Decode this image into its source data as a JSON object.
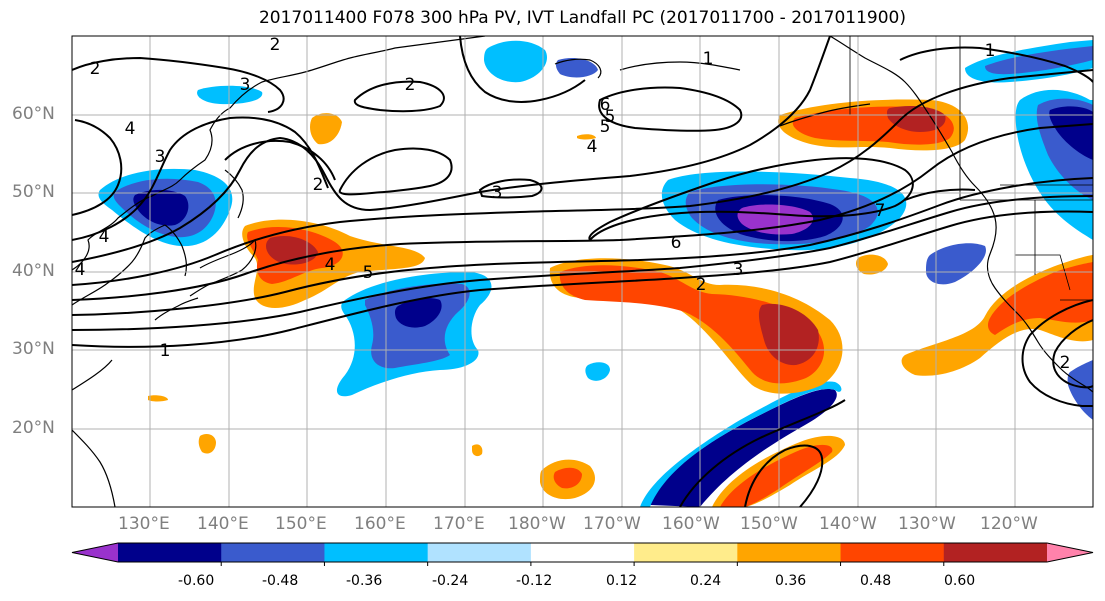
{
  "title": "2017011400 F078 300 hPa PV, IVT Landfall PC (2017011700 - 2017011900)",
  "lat_labels": [
    "60°N",
    "50°N",
    "40°N",
    "30°N",
    "20°N"
  ],
  "lon_labels": [
    "130°E",
    "140°E",
    "150°E",
    "160°E",
    "170°E",
    "180°W",
    "170°W",
    "160°W",
    "150°W",
    "140°W",
    "130°W",
    "120°W"
  ],
  "colorbar": {
    "colors": [
      "#9932cc",
      "#00008b",
      "#3a5bcd",
      "#00bfff",
      "#b0e2ff",
      "#ffffff",
      "#ffec8b",
      "#ffa500",
      "#ff4500",
      "#b22222",
      "#ff82ab"
    ],
    "tick_labels": [
      "-0.60",
      "-0.48",
      "-0.36",
      "-0.24",
      "-0.12",
      "0.12",
      "0.24",
      "0.36",
      "0.48",
      "0.60"
    ]
  },
  "contour_labels": [
    "2",
    "2",
    "2",
    "3",
    "4",
    "3",
    "2",
    "4",
    "5",
    "6",
    "5",
    "4",
    "3",
    "6",
    "3",
    "2",
    "1",
    "4",
    "5",
    "4",
    "1",
    "1",
    "7",
    "2"
  ]
}
